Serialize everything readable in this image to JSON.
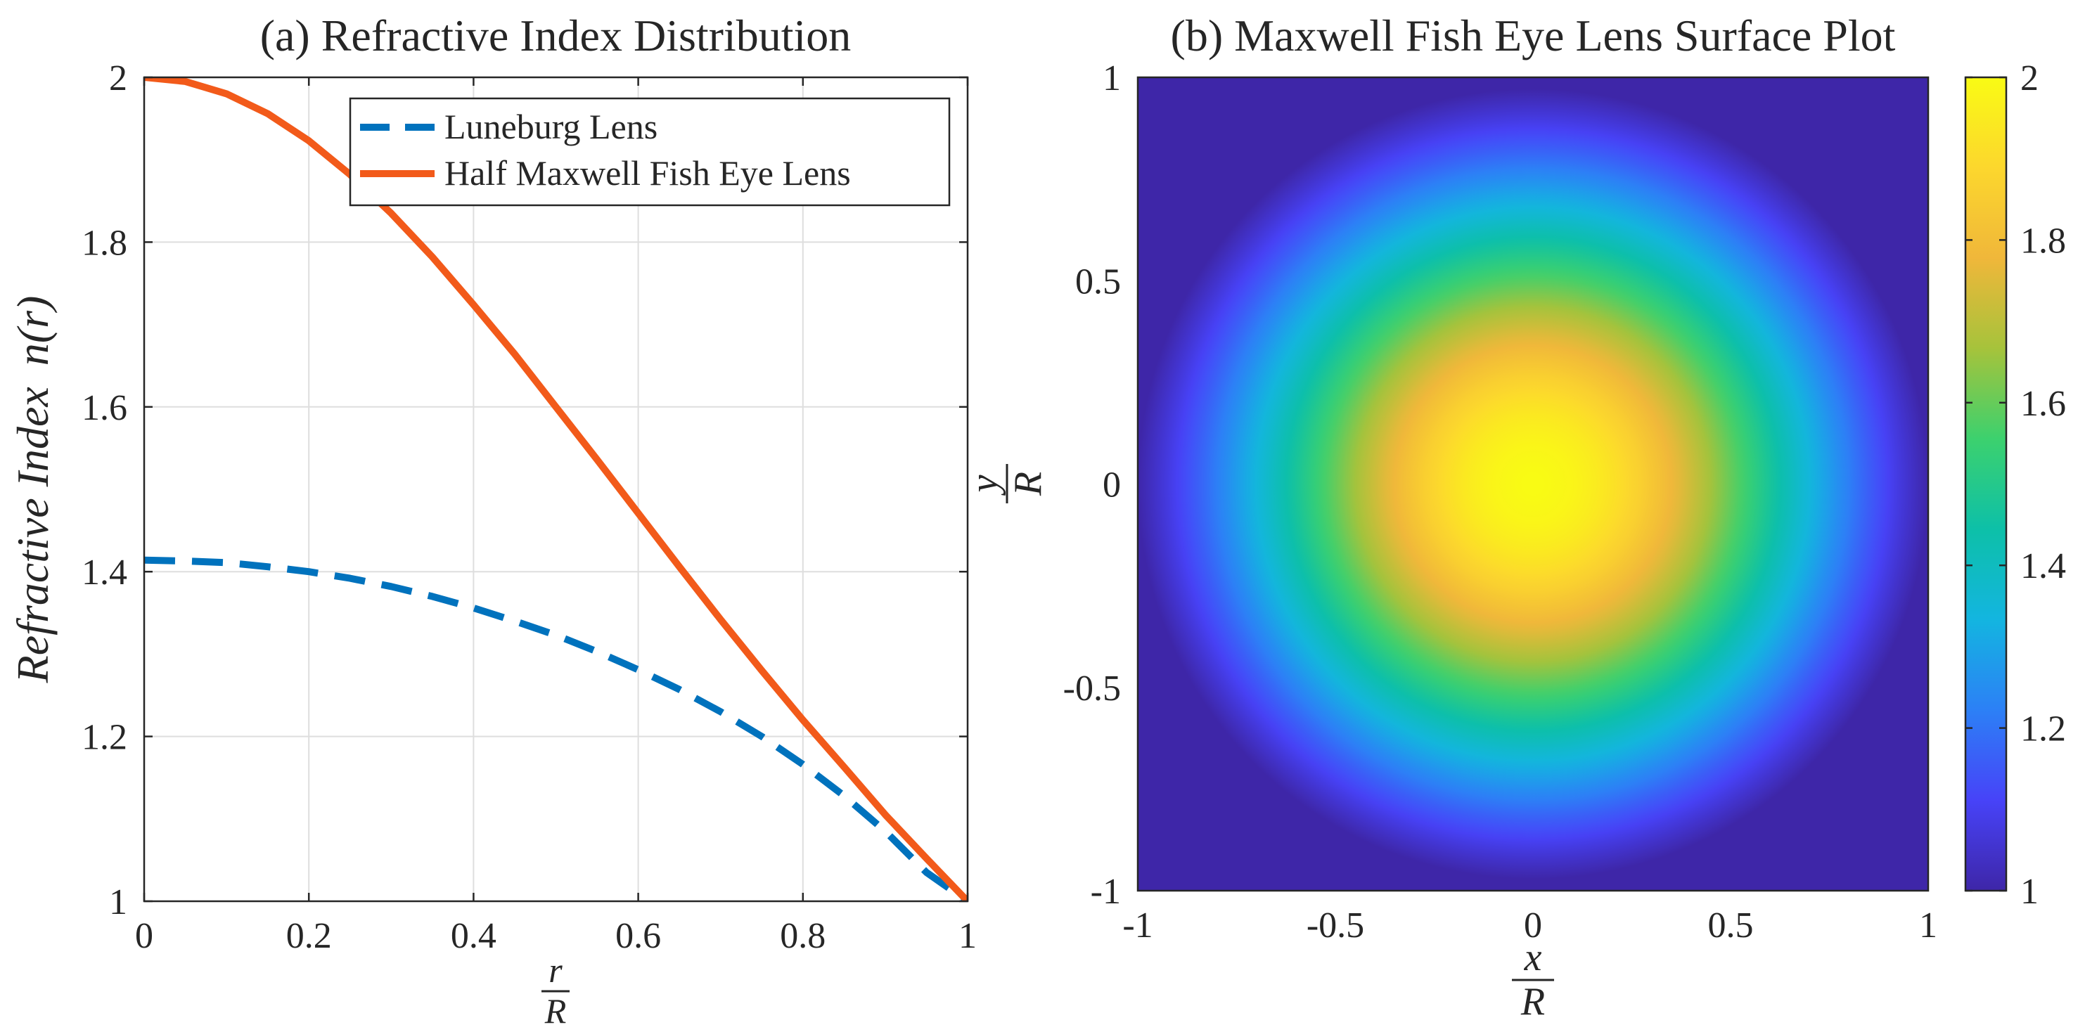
{
  "chart_data": [
    {
      "id": "a",
      "type": "line",
      "title": "(a) Refractive Index Distribution",
      "xlabel": {
        "num": "r",
        "den": "R"
      },
      "ylabel": {
        "italic": "Refractive Index",
        "func": "n(r)"
      },
      "xlim": [
        0,
        1
      ],
      "ylim": [
        1,
        2
      ],
      "xticks": [
        0,
        0.2,
        0.4,
        0.6,
        0.8,
        1
      ],
      "xtick_labels": [
        "0",
        "0.2",
        "0.4",
        "0.6",
        "0.8",
        "1"
      ],
      "yticks": [
        1,
        1.2,
        1.4,
        1.6,
        1.8,
        2
      ],
      "ytick_labels": [
        "1",
        "1.2",
        "1.4",
        "1.6",
        "1.8",
        "2"
      ],
      "grid": true,
      "legend_position": "top-right",
      "x": [
        0,
        0.05,
        0.1,
        0.15,
        0.2,
        0.25,
        0.3,
        0.35,
        0.4,
        0.45,
        0.5,
        0.55,
        0.6,
        0.65,
        0.7,
        0.75,
        0.8,
        0.85,
        0.9,
        0.95,
        1
      ],
      "series": [
        {
          "name": "Luneburg Lens",
          "style": "dashed",
          "color": "#0072BD",
          "values": [
            1.414,
            1.413,
            1.411,
            1.406,
            1.4,
            1.392,
            1.382,
            1.37,
            1.356,
            1.34,
            1.323,
            1.303,
            1.281,
            1.257,
            1.23,
            1.2,
            1.166,
            1.128,
            1.085,
            1.035,
            1.0
          ]
        },
        {
          "name": "Half Maxwell Fish Eye Lens",
          "style": "solid",
          "color": "#F25A1A",
          "values": [
            2.0,
            1.995,
            1.98,
            1.956,
            1.923,
            1.882,
            1.835,
            1.782,
            1.724,
            1.664,
            1.6,
            1.536,
            1.471,
            1.406,
            1.342,
            1.28,
            1.22,
            1.163,
            1.105,
            1.052,
            1.0
          ]
        }
      ]
    },
    {
      "id": "b",
      "type": "heatmap",
      "title": "(b) Maxwell Fish Eye Lens Surface Plot",
      "xlabel": {
        "num": "x",
        "den": "R"
      },
      "ylabel": {
        "num": "y",
        "den": "R"
      },
      "xlim": [
        -1,
        1
      ],
      "ylim": [
        -1,
        1
      ],
      "xticks": [
        -1,
        -0.5,
        0,
        0.5,
        1
      ],
      "xtick_labels": [
        "-1",
        "-0.5",
        "0",
        "0.5",
        "1"
      ],
      "yticks": [
        -1,
        -0.5,
        0,
        0.5,
        1
      ],
      "ytick_labels": [
        "-1",
        "-0.5",
        "0",
        "0.5",
        "1"
      ],
      "value_function": "n = 2 / (1 + (x^2 + y^2)); n = 1 for sqrt(x^2+y^2) >= 1",
      "center_value": 2,
      "edge_value": 1,
      "colorbar": {
        "min": 1,
        "max": 2,
        "ticks": [
          1,
          1.2,
          1.4,
          1.6,
          1.8,
          2
        ],
        "tick_labels": [
          "1",
          "1.2",
          "1.4",
          "1.6",
          "1.8",
          "2"
        ],
        "colormap": "parula",
        "colormap_stops": [
          "#3E26A8",
          "#4743F8",
          "#2C80F6",
          "#13B5E0",
          "#0DC0A8",
          "#3CD16E",
          "#A6C33B",
          "#F0B73A",
          "#FCD72D",
          "#F9FB14"
        ]
      }
    }
  ]
}
